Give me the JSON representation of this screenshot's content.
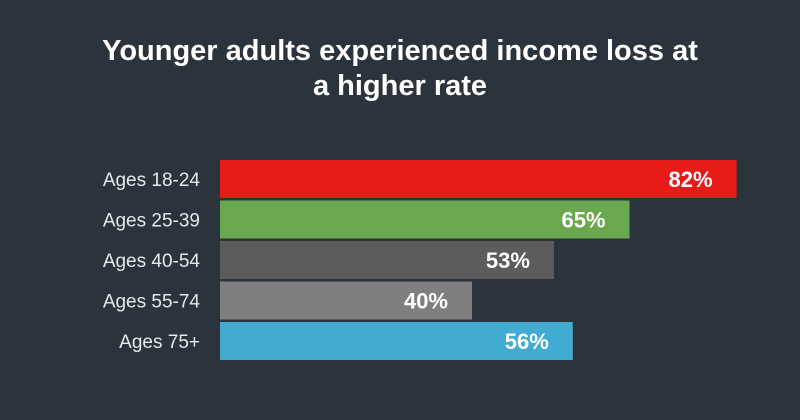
{
  "chart_data": {
    "type": "bar",
    "orientation": "horizontal",
    "title": "Younger adults experienced income loss at a higher rate",
    "categories": [
      "Ages 18-24",
      "Ages 25-39",
      "Ages 40-54",
      "Ages 55-74",
      "Ages 75+"
    ],
    "values": [
      82,
      65,
      53,
      40,
      56
    ],
    "value_labels": [
      "82%",
      "65%",
      "53%",
      "40%",
      "56%"
    ],
    "unit": "%",
    "xlim": [
      0,
      100
    ],
    "grid": false,
    "legend": "none",
    "colors": [
      "#e81b18",
      "#6aa84f",
      "#5c5c5c",
      "#7f7f7f",
      "#41abd1"
    ]
  },
  "theme": {
    "background": "#2b343d",
    "text": "#ffffff"
  }
}
